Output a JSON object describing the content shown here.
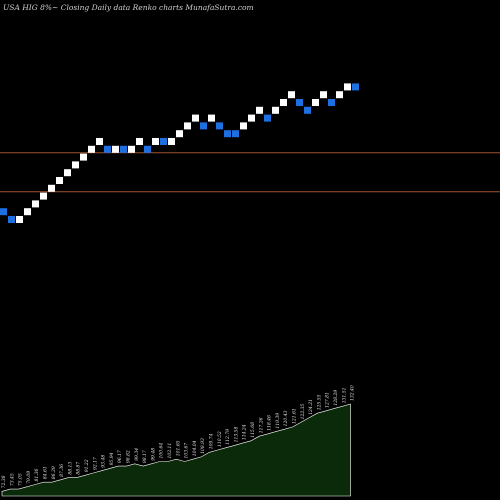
{
  "header": {
    "title": "USA HIG 8%~ Closing Daily data Renko charts MunafaSutra.com"
  },
  "colors": {
    "background": "#000000",
    "up_brick": "#ffffff",
    "down_brick": "#1e6fe0",
    "ref_line": "#a0522d",
    "volume_fill": "#0a2a0a",
    "volume_stroke": "#ffffff"
  },
  "chart_data": [
    {
      "type": "renko",
      "title": "USA HIG 8%~ Closing Daily data Renko charts MunafaSutra.com",
      "brick_size": 1,
      "bricks": [
        {
          "level": 6,
          "dir": "down"
        },
        {
          "level": 5,
          "dir": "down"
        },
        {
          "level": 5,
          "dir": "up"
        },
        {
          "level": 6,
          "dir": "up"
        },
        {
          "level": 7,
          "dir": "up"
        },
        {
          "level": 8,
          "dir": "up"
        },
        {
          "level": 9,
          "dir": "up"
        },
        {
          "level": 10,
          "dir": "up"
        },
        {
          "level": 11,
          "dir": "up"
        },
        {
          "level": 12,
          "dir": "up"
        },
        {
          "level": 13,
          "dir": "up"
        },
        {
          "level": 14,
          "dir": "up"
        },
        {
          "level": 15,
          "dir": "up"
        },
        {
          "level": 14,
          "dir": "down"
        },
        {
          "level": 14,
          "dir": "up"
        },
        {
          "level": 14,
          "dir": "down"
        },
        {
          "level": 14,
          "dir": "up"
        },
        {
          "level": 15,
          "dir": "up"
        },
        {
          "level": 14,
          "dir": "down"
        },
        {
          "level": 15,
          "dir": "up"
        },
        {
          "level": 15,
          "dir": "down"
        },
        {
          "level": 15,
          "dir": "up"
        },
        {
          "level": 16,
          "dir": "up"
        },
        {
          "level": 17,
          "dir": "up"
        },
        {
          "level": 18,
          "dir": "up"
        },
        {
          "level": 17,
          "dir": "down"
        },
        {
          "level": 18,
          "dir": "up"
        },
        {
          "level": 17,
          "dir": "down"
        },
        {
          "level": 16,
          "dir": "down"
        },
        {
          "level": 16,
          "dir": "down"
        },
        {
          "level": 17,
          "dir": "up"
        },
        {
          "level": 18,
          "dir": "up"
        },
        {
          "level": 19,
          "dir": "up"
        },
        {
          "level": 18,
          "dir": "down"
        },
        {
          "level": 19,
          "dir": "up"
        },
        {
          "level": 20,
          "dir": "up"
        },
        {
          "level": 21,
          "dir": "up"
        },
        {
          "level": 20,
          "dir": "down"
        },
        {
          "level": 19,
          "dir": "down"
        },
        {
          "level": 20,
          "dir": "up"
        },
        {
          "level": 21,
          "dir": "up"
        },
        {
          "level": 20,
          "dir": "down"
        },
        {
          "level": 21,
          "dir": "up"
        },
        {
          "level": 22,
          "dir": "up"
        },
        {
          "level": 22,
          "dir": "down"
        }
      ],
      "reference_lines": [
        14,
        9
      ],
      "volume": {
        "values": [
          2,
          3,
          3,
          4,
          5,
          6,
          6,
          7,
          8,
          8,
          9,
          10,
          11,
          12,
          13,
          13,
          14,
          13,
          14,
          15,
          15,
          16,
          15,
          16,
          17,
          19,
          20,
          21,
          22,
          23,
          24,
          26,
          27,
          28,
          29,
          30,
          32,
          34,
          36,
          37,
          38,
          39,
          40
        ],
        "labels": [
          "72.38",
          "73.45",
          "75.05",
          "79.09",
          "81.36",
          "84.61",
          "86.39",
          "87.36",
          "88.13",
          "88.87",
          "91.22",
          "92.17",
          "93.48",
          "95.94",
          "96.17",
          "98.82",
          "99.34",
          "98.17",
          "99.48",
          "100.64",
          "102.11",
          "101.65",
          "103.67",
          "104.04",
          "108.93",
          "109.74",
          "110.52",
          "112.79",
          "113.58",
          "114.24",
          "115.68",
          "117.26",
          "118.46",
          "119.39",
          "120.43",
          "121.61",
          "122.35",
          "124.21",
          "125.55",
          "127.81",
          "128.29",
          "131.51",
          "132.40"
        ]
      }
    }
  ]
}
